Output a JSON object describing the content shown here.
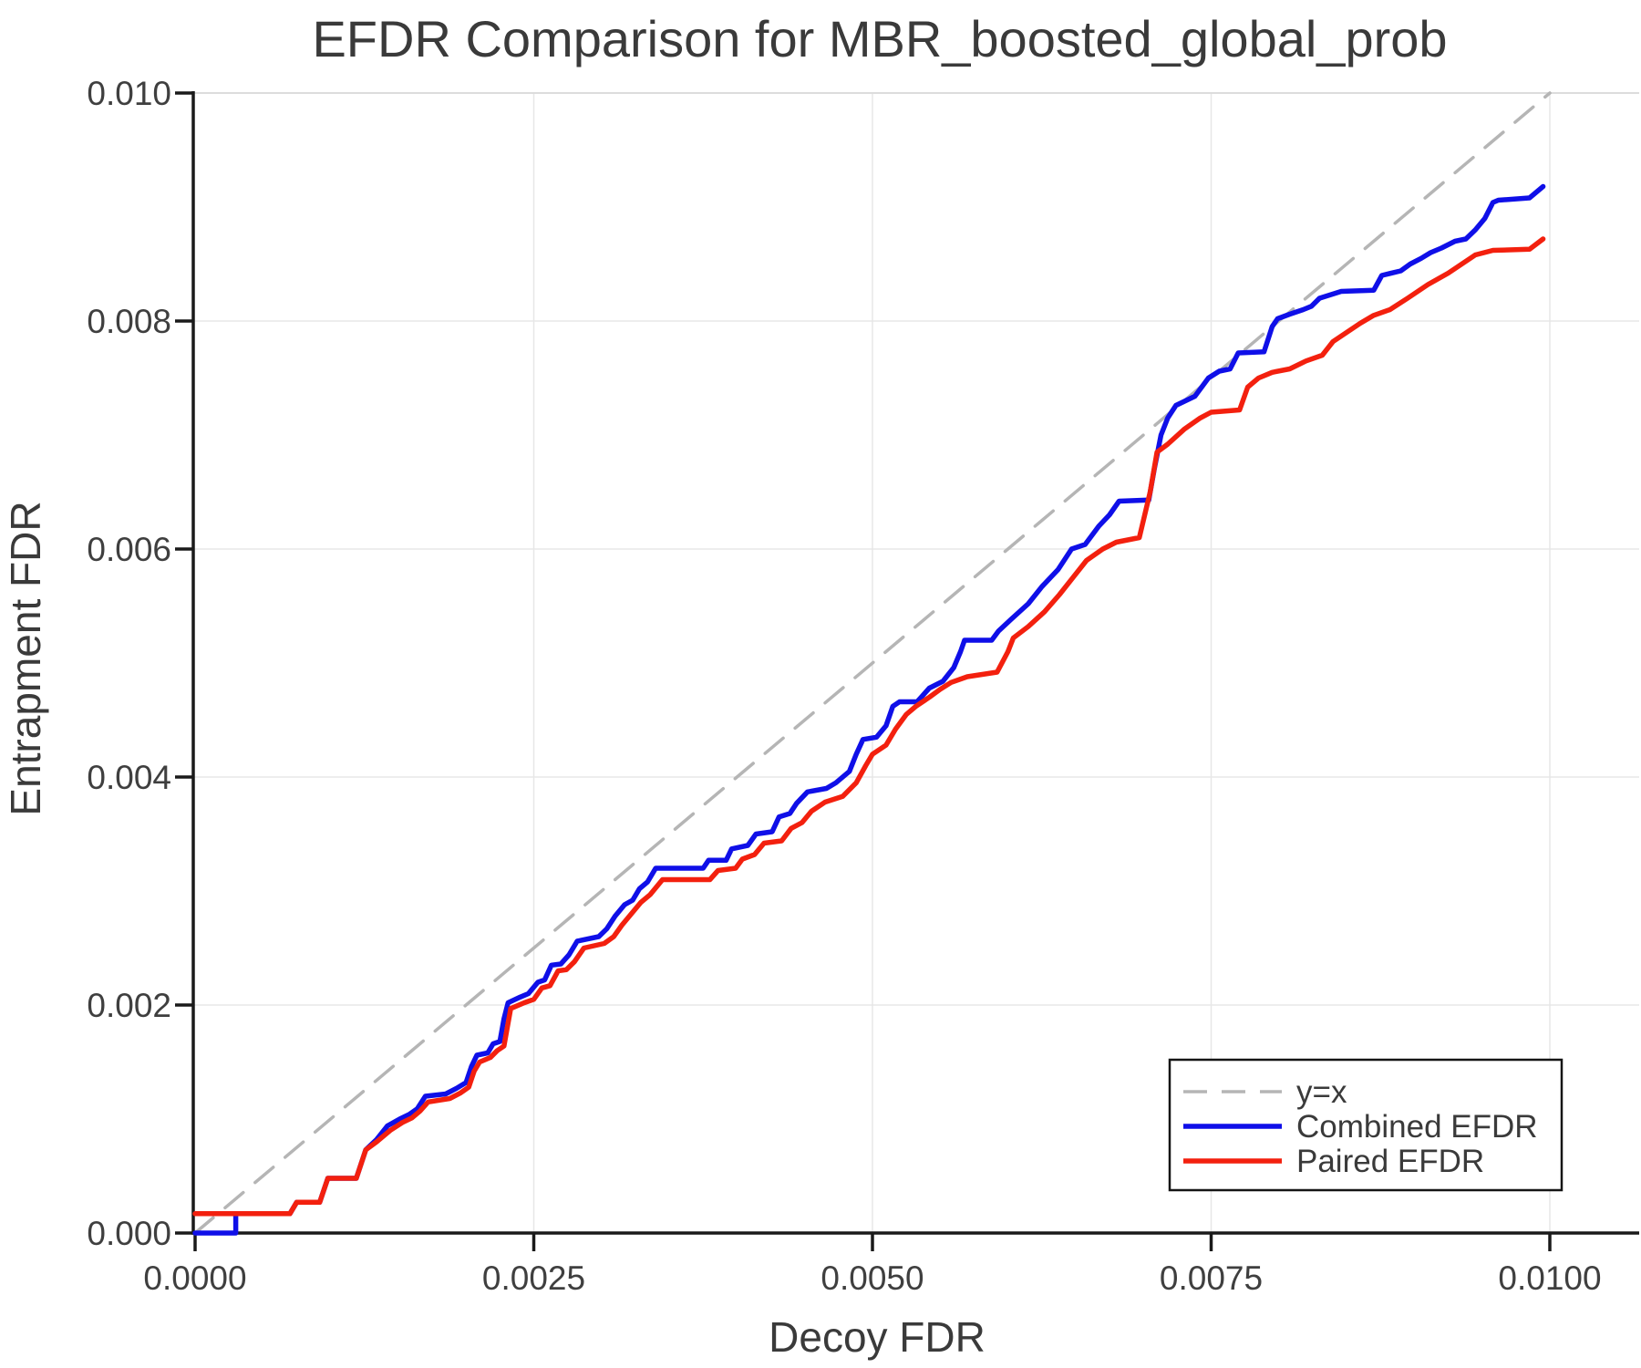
{
  "title": "EFDR Comparison for MBR_boosted_global_prob",
  "axes": {
    "xlabel": "Decoy FDR",
    "ylabel": "Entrapment FDR"
  },
  "legend": {
    "items": [
      {
        "label": "y=x"
      },
      {
        "label": "Combined EFDR"
      },
      {
        "label": "Paired EFDR"
      }
    ]
  },
  "colors": {
    "identity_line": "#b5b5b5",
    "combined": "#0f0fe8",
    "paired": "#f3200e",
    "grid": "#e7e7e7",
    "spine": "#1a1a1a",
    "top_border": "#dcdcdc",
    "text": "#3a3a3a",
    "background": "#ffffff"
  },
  "chart_data": {
    "type": "line",
    "title": "EFDR Comparison for MBR_boosted_global_prob",
    "xlabel": "Decoy FDR",
    "ylabel": "Entrapment FDR",
    "xlim": [
      0.0,
      0.01
    ],
    "ylim": [
      0.0,
      0.01
    ],
    "grid": true,
    "legend_position": "lower right",
    "x_tick_values": [
      0.0,
      0.0025,
      0.005,
      0.0075,
      0.01
    ],
    "x_tick_labels": [
      "0.0000",
      "0.0025",
      "0.0050",
      "0.0075",
      "0.0100"
    ],
    "y_tick_values": [
      0.0,
      0.002,
      0.004,
      0.006,
      0.008,
      0.01
    ],
    "y_tick_labels": [
      "0.000",
      "0.002",
      "0.004",
      "0.006",
      "0.008",
      "0.010"
    ],
    "series": [
      {
        "name": "y=x",
        "style": "dashed",
        "color": "#b5b5b5",
        "width": 3.5,
        "points": [
          [
            0.0,
            0.0
          ],
          [
            0.01,
            0.01
          ]
        ]
      },
      {
        "name": "Combined EFDR",
        "style": "solid",
        "color": "#0f0fe8",
        "width": 5.5,
        "points": [
          [
            0.0,
            0.0
          ],
          [
            0.0003,
            0.0
          ],
          [
            0.0003,
            0.00017
          ],
          [
            0.0007,
            0.00017
          ],
          [
            0.00075,
            0.00027
          ],
          [
            0.00092,
            0.00027
          ],
          [
            0.00098,
            0.00048
          ],
          [
            0.00119,
            0.00048
          ],
          [
            0.00126,
            0.00073
          ],
          [
            0.00134,
            0.00082
          ],
          [
            0.00142,
            0.00094
          ],
          [
            0.00151,
            0.001
          ],
          [
            0.00158,
            0.00104
          ],
          [
            0.00164,
            0.00109
          ],
          [
            0.0017,
            0.0012
          ],
          [
            0.00185,
            0.00122
          ],
          [
            0.00193,
            0.00127
          ],
          [
            0.002,
            0.00132
          ],
          [
            0.00204,
            0.00146
          ],
          [
            0.00208,
            0.00156
          ],
          [
            0.00216,
            0.00158
          ],
          [
            0.0022,
            0.00166
          ],
          [
            0.00225,
            0.00168
          ],
          [
            0.00228,
            0.00188
          ],
          [
            0.00231,
            0.00202
          ],
          [
            0.0024,
            0.00207
          ],
          [
            0.00246,
            0.0021
          ],
          [
            0.00253,
            0.0022
          ],
          [
            0.00258,
            0.00222
          ],
          [
            0.00263,
            0.00235
          ],
          [
            0.0027,
            0.00236
          ],
          [
            0.00276,
            0.00244
          ],
          [
            0.00282,
            0.00256
          ],
          [
            0.00298,
            0.0026
          ],
          [
            0.00304,
            0.00267
          ],
          [
            0.0031,
            0.00278
          ],
          [
            0.00317,
            0.00288
          ],
          [
            0.00323,
            0.00292
          ],
          [
            0.00328,
            0.00302
          ],
          [
            0.00334,
            0.00308
          ],
          [
            0.0034,
            0.0032
          ],
          [
            0.00375,
            0.0032
          ],
          [
            0.00379,
            0.00327
          ],
          [
            0.00392,
            0.00327
          ],
          [
            0.00396,
            0.00337
          ],
          [
            0.00408,
            0.0034
          ],
          [
            0.00414,
            0.0035
          ],
          [
            0.00426,
            0.00352
          ],
          [
            0.00431,
            0.00365
          ],
          [
            0.00439,
            0.00368
          ],
          [
            0.00444,
            0.00377
          ],
          [
            0.00452,
            0.00387
          ],
          [
            0.00466,
            0.0039
          ],
          [
            0.00473,
            0.00395
          ],
          [
            0.00483,
            0.00405
          ],
          [
            0.00488,
            0.0042
          ],
          [
            0.00493,
            0.00433
          ],
          [
            0.00503,
            0.00435
          ],
          [
            0.0051,
            0.00445
          ],
          [
            0.00515,
            0.00462
          ],
          [
            0.0052,
            0.00466
          ],
          [
            0.00533,
            0.00466
          ],
          [
            0.00542,
            0.00478
          ],
          [
            0.00552,
            0.00484
          ],
          [
            0.0056,
            0.00496
          ],
          [
            0.00565,
            0.0051
          ],
          [
            0.00568,
            0.0052
          ],
          [
            0.00588,
            0.0052
          ],
          [
            0.00593,
            0.00528
          ],
          [
            0.00602,
            0.00538
          ],
          [
            0.00615,
            0.00552
          ],
          [
            0.00625,
            0.00567
          ],
          [
            0.00637,
            0.00582
          ],
          [
            0.00647,
            0.006
          ],
          [
            0.00657,
            0.00604
          ],
          [
            0.00667,
            0.0062
          ],
          [
            0.00675,
            0.0063
          ],
          [
            0.00682,
            0.00642
          ],
          [
            0.00704,
            0.00643
          ],
          [
            0.00708,
            0.0067
          ],
          [
            0.00713,
            0.007
          ],
          [
            0.00718,
            0.00715
          ],
          [
            0.00724,
            0.00726
          ],
          [
            0.00738,
            0.00734
          ],
          [
            0.00748,
            0.0075
          ],
          [
            0.00756,
            0.00756
          ],
          [
            0.00764,
            0.00758
          ],
          [
            0.0077,
            0.00772
          ],
          [
            0.00789,
            0.00773
          ],
          [
            0.00795,
            0.00795
          ],
          [
            0.00799,
            0.00802
          ],
          [
            0.00808,
            0.00806
          ],
          [
            0.00818,
            0.0081
          ],
          [
            0.00824,
            0.00813
          ],
          [
            0.0083,
            0.0082
          ],
          [
            0.00846,
            0.00826
          ],
          [
            0.0087,
            0.00827
          ],
          [
            0.00876,
            0.0084
          ],
          [
            0.0089,
            0.00844
          ],
          [
            0.00897,
            0.0085
          ],
          [
            0.00905,
            0.00855
          ],
          [
            0.00912,
            0.0086
          ],
          [
            0.0092,
            0.00864
          ],
          [
            0.0093,
            0.0087
          ],
          [
            0.00938,
            0.00872
          ],
          [
            0.00945,
            0.0088
          ],
          [
            0.00952,
            0.0089
          ],
          [
            0.00958,
            0.00904
          ],
          [
            0.00962,
            0.00906
          ],
          [
            0.00985,
            0.00908
          ],
          [
            0.00995,
            0.00918
          ]
        ]
      },
      {
        "name": "Paired EFDR",
        "style": "solid",
        "color": "#f3200e",
        "width": 5.5,
        "points": [
          [
            0.0,
            0.00017
          ],
          [
            0.0007,
            0.00017
          ],
          [
            0.00075,
            0.00027
          ],
          [
            0.00092,
            0.00027
          ],
          [
            0.00098,
            0.00048
          ],
          [
            0.00119,
            0.00048
          ],
          [
            0.00126,
            0.00073
          ],
          [
            0.00134,
            0.0008
          ],
          [
            0.00144,
            0.0009
          ],
          [
            0.00153,
            0.00097
          ],
          [
            0.0016,
            0.00101
          ],
          [
            0.00166,
            0.00107
          ],
          [
            0.00172,
            0.00115
          ],
          [
            0.00188,
            0.00118
          ],
          [
            0.00196,
            0.00123
          ],
          [
            0.00202,
            0.00128
          ],
          [
            0.00206,
            0.00142
          ],
          [
            0.0021,
            0.0015
          ],
          [
            0.00218,
            0.00154
          ],
          [
            0.00223,
            0.0016
          ],
          [
            0.00228,
            0.00164
          ],
          [
            0.00233,
            0.00197
          ],
          [
            0.00243,
            0.00202
          ],
          [
            0.0025,
            0.00205
          ],
          [
            0.00256,
            0.00215
          ],
          [
            0.00262,
            0.00217
          ],
          [
            0.00268,
            0.0023
          ],
          [
            0.00274,
            0.00231
          ],
          [
            0.0028,
            0.00238
          ],
          [
            0.00287,
            0.0025
          ],
          [
            0.00302,
            0.00254
          ],
          [
            0.00309,
            0.0026
          ],
          [
            0.00315,
            0.0027
          ],
          [
            0.00322,
            0.0028
          ],
          [
            0.00329,
            0.0029
          ],
          [
            0.00336,
            0.00297
          ],
          [
            0.00345,
            0.0031
          ],
          [
            0.0038,
            0.0031
          ],
          [
            0.00386,
            0.00318
          ],
          [
            0.00399,
            0.0032
          ],
          [
            0.00404,
            0.00328
          ],
          [
            0.00413,
            0.00332
          ],
          [
            0.0042,
            0.00342
          ],
          [
            0.00433,
            0.00344
          ],
          [
            0.0044,
            0.00355
          ],
          [
            0.00448,
            0.0036
          ],
          [
            0.00455,
            0.0037
          ],
          [
            0.00465,
            0.00378
          ],
          [
            0.00478,
            0.00383
          ],
          [
            0.00488,
            0.00395
          ],
          [
            0.00495,
            0.0041
          ],
          [
            0.005,
            0.0042
          ],
          [
            0.0051,
            0.00428
          ],
          [
            0.00517,
            0.00442
          ],
          [
            0.00525,
            0.00455
          ],
          [
            0.00532,
            0.00462
          ],
          [
            0.00542,
            0.0047
          ],
          [
            0.0055,
            0.00477
          ],
          [
            0.00558,
            0.00483
          ],
          [
            0.0057,
            0.00488
          ],
          [
            0.00592,
            0.00492
          ],
          [
            0.006,
            0.0051
          ],
          [
            0.00604,
            0.00522
          ],
          [
            0.00615,
            0.00532
          ],
          [
            0.00627,
            0.00545
          ],
          [
            0.00638,
            0.0056
          ],
          [
            0.00648,
            0.00575
          ],
          [
            0.00658,
            0.0059
          ],
          [
            0.0067,
            0.006
          ],
          [
            0.0068,
            0.00606
          ],
          [
            0.00697,
            0.0061
          ],
          [
            0.00705,
            0.0065
          ],
          [
            0.0071,
            0.00685
          ],
          [
            0.00718,
            0.00692
          ],
          [
            0.0073,
            0.00705
          ],
          [
            0.00742,
            0.00715
          ],
          [
            0.0075,
            0.0072
          ],
          [
            0.00771,
            0.00722
          ],
          [
            0.00777,
            0.00742
          ],
          [
            0.00785,
            0.0075
          ],
          [
            0.00795,
            0.00755
          ],
          [
            0.00808,
            0.00758
          ],
          [
            0.0082,
            0.00765
          ],
          [
            0.00832,
            0.0077
          ],
          [
            0.0084,
            0.00782
          ],
          [
            0.0085,
            0.0079
          ],
          [
            0.0086,
            0.00798
          ],
          [
            0.0087,
            0.00805
          ],
          [
            0.00882,
            0.0081
          ],
          [
            0.00895,
            0.0082
          ],
          [
            0.0091,
            0.00832
          ],
          [
            0.00925,
            0.00842
          ],
          [
            0.00935,
            0.0085
          ],
          [
            0.00945,
            0.00858
          ],
          [
            0.00958,
            0.00862
          ],
          [
            0.00985,
            0.00863
          ],
          [
            0.00995,
            0.00872
          ]
        ]
      }
    ]
  }
}
